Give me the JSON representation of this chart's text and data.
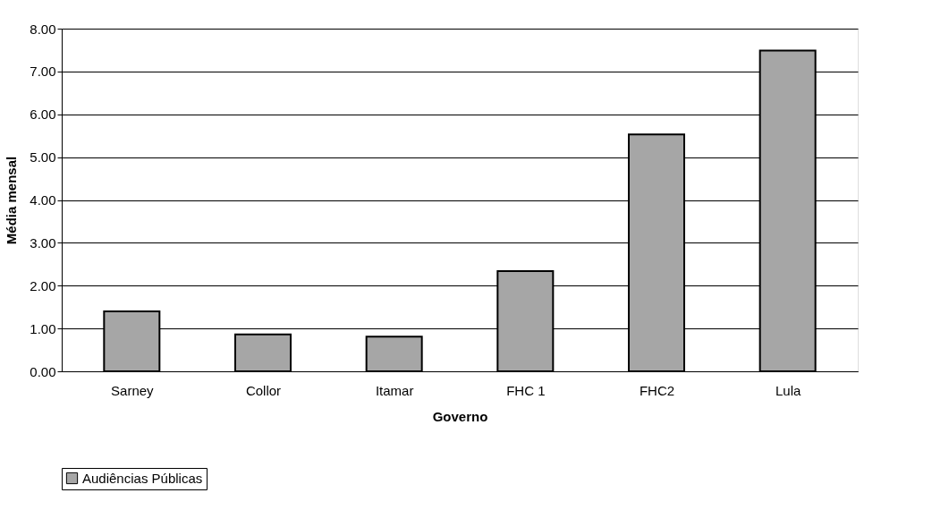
{
  "chart_data": {
    "type": "bar",
    "xlabel": "Governo",
    "ylabel": "Média mensal",
    "categories": [
      "Sarney",
      "Collor",
      "Itamar",
      "FHC 1",
      "FHC2",
      "Lula"
    ],
    "series": [
      {
        "name": "Audiências Públicas",
        "color": "#a6a6a6",
        "values": [
          1.4,
          0.86,
          0.81,
          2.34,
          5.53,
          7.49
        ]
      }
    ],
    "ylim": [
      0,
      8
    ],
    "yticks": [
      {
        "value": 0,
        "label": "0.00"
      },
      {
        "value": 1,
        "label": "1.00"
      },
      {
        "value": 2,
        "label": "2.00"
      },
      {
        "value": 3,
        "label": "3.00"
      },
      {
        "value": 4,
        "label": "4.00"
      },
      {
        "value": 5,
        "label": "5.00"
      },
      {
        "value": 6,
        "label": "6.00"
      },
      {
        "value": 7,
        "label": "7.00"
      },
      {
        "value": 8,
        "label": "8.00"
      }
    ],
    "grid": "y",
    "legend": "bottom"
  }
}
